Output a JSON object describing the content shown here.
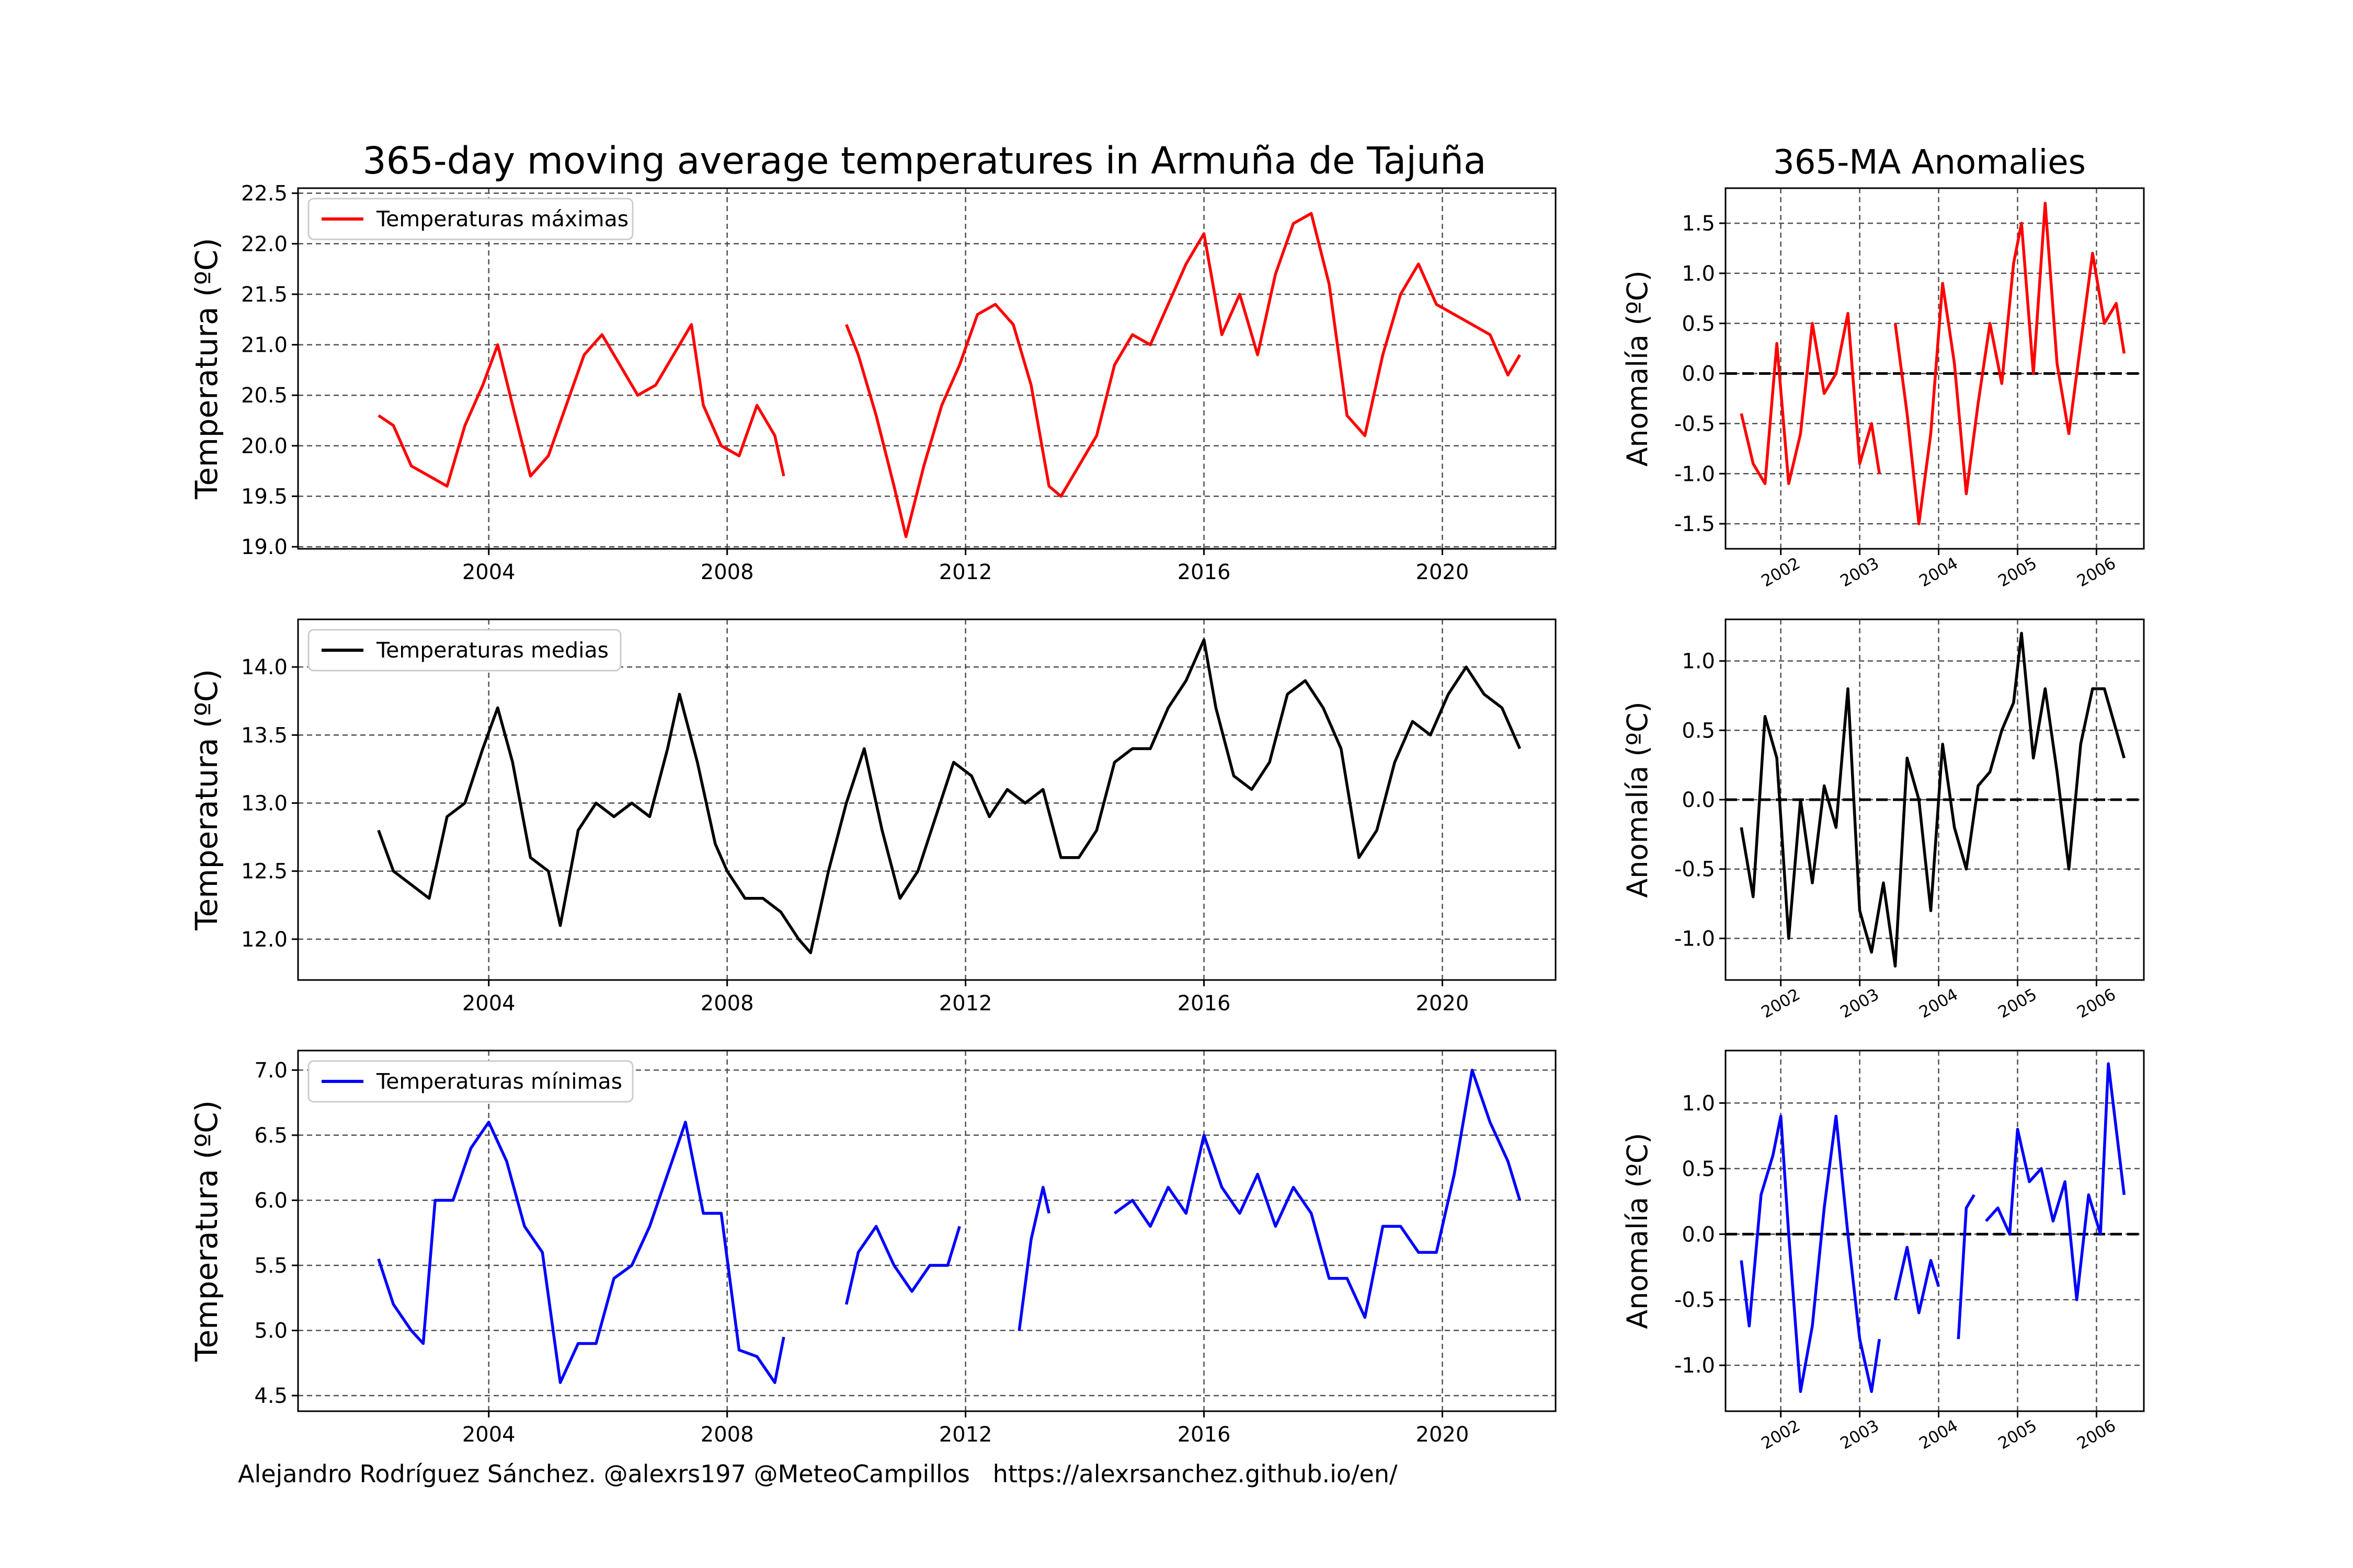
{
  "title": "365-day moving average temperatures in Armuña de Tajuña",
  "anomalies_title": "365-MA Anomalies",
  "footer": {
    "author": "Alejandro Rodríguez Sánchez. @alexrs197 @MeteoCampillos",
    "url": "https://alexrsanchez.github.io/en/"
  },
  "colors": {
    "max": "#ff0000",
    "mean": "#000000",
    "min": "#0000ff",
    "grid": "#505050"
  },
  "chart_data": [
    {
      "type": "line",
      "ylabel": "Temperatura (ºC)",
      "xlim": [
        2000.8,
        2021.9
      ],
      "ylim": [
        18.98,
        22.55
      ],
      "xticks": [
        2004,
        2008,
        2012,
        2016,
        2020
      ],
      "yticks": [
        19.0,
        19.5,
        20.0,
        20.5,
        21.0,
        21.5,
        22.0,
        22.5
      ],
      "legend": "top-left",
      "grid": true,
      "series": [
        {
          "name": "Temperaturas máximas",
          "color": "#ff0000",
          "x": [
            2002.15,
            2002.4,
            2002.7,
            2003.0,
            2003.3,
            2003.6,
            2003.9,
            2004.15,
            2004.4,
            2004.7,
            2005.0,
            2005.3,
            2005.6,
            2005.9,
            2006.2,
            2006.5,
            2006.8,
            2007.1,
            2007.4,
            2007.6,
            2007.9,
            2008.2,
            2008.5,
            2008.8,
            2008.95,
            null,
            2010.0,
            2010.2,
            2010.5,
            2010.8,
            2011.0,
            2011.3,
            2011.6,
            2011.9,
            2012.2,
            2012.5,
            2012.8,
            2013.1,
            2013.4,
            2013.6,
            2013.9,
            2014.2,
            2014.5,
            2014.8,
            2015.1,
            2015.4,
            2015.7,
            2016.0,
            2016.3,
            2016.6,
            2016.9,
            2017.2,
            2017.5,
            2017.8,
            2018.1,
            2018.4,
            2018.7,
            2019.0,
            2019.3,
            2019.6,
            2019.9,
            2020.2,
            2020.5,
            2020.8,
            2021.1,
            2021.3
          ],
          "y": [
            20.3,
            20.2,
            19.8,
            19.7,
            19.6,
            20.2,
            20.6,
            21.0,
            20.4,
            19.7,
            19.9,
            20.4,
            20.9,
            21.1,
            20.8,
            20.5,
            20.6,
            20.9,
            21.2,
            20.4,
            20.0,
            19.9,
            20.4,
            20.1,
            19.7,
            null,
            21.2,
            20.9,
            20.3,
            19.6,
            19.1,
            19.8,
            20.4,
            20.8,
            21.3,
            21.4,
            21.2,
            20.6,
            19.6,
            19.5,
            19.8,
            20.1,
            20.8,
            21.1,
            21.0,
            21.4,
            21.8,
            22.1,
            21.1,
            21.5,
            20.9,
            21.7,
            22.2,
            22.3,
            21.6,
            20.3,
            20.1,
            20.9,
            21.5,
            21.8,
            21.4,
            21.3,
            21.2,
            21.1,
            20.7,
            20.9
          ]
        }
      ]
    },
    {
      "type": "line",
      "ylabel": "Temperatura (ºC)",
      "xlim": [
        2000.8,
        2021.9
      ],
      "ylim": [
        11.7,
        14.35
      ],
      "xticks": [
        2004,
        2008,
        2012,
        2016,
        2020
      ],
      "yticks": [
        12.0,
        12.5,
        13.0,
        13.5,
        14.0
      ],
      "legend": "top-left",
      "grid": true,
      "series": [
        {
          "name": "Temperaturas medias",
          "color": "#000000",
          "x": [
            2002.15,
            2002.4,
            2002.7,
            2003.0,
            2003.3,
            2003.6,
            2003.9,
            2004.15,
            2004.4,
            2004.7,
            2005.0,
            2005.2,
            2005.5,
            2005.8,
            2006.1,
            2006.4,
            2006.7,
            2007.0,
            2007.2,
            2007.5,
            2007.8,
            2008.0,
            2008.3,
            2008.6,
            2008.9,
            2009.2,
            2009.4,
            2009.7,
            2010.0,
            2010.3,
            2010.6,
            2010.9,
            2011.2,
            2011.5,
            2011.8,
            2012.1,
            2012.4,
            2012.7,
            2013.0,
            2013.3,
            2013.6,
            2013.9,
            2014.2,
            2014.5,
            2014.8,
            2015.1,
            2015.4,
            2015.7,
            2016.0,
            2016.2,
            2016.5,
            2016.8,
            2017.1,
            2017.4,
            2017.7,
            2018.0,
            2018.3,
            2018.6,
            2018.9,
            2019.2,
            2019.5,
            2019.8,
            2020.1,
            2020.4,
            2020.7,
            2021.0,
            2021.3
          ],
          "y": [
            12.8,
            12.5,
            12.4,
            12.3,
            12.9,
            13.0,
            13.4,
            13.7,
            13.3,
            12.6,
            12.5,
            12.1,
            12.8,
            13.0,
            12.9,
            13.0,
            12.9,
            13.4,
            13.8,
            13.3,
            12.7,
            12.5,
            12.3,
            12.3,
            12.2,
            12.0,
            11.9,
            12.5,
            13.0,
            13.4,
            12.8,
            12.3,
            12.5,
            12.9,
            13.3,
            13.2,
            12.9,
            13.1,
            13.0,
            13.1,
            12.6,
            12.6,
            12.8,
            13.3,
            13.4,
            13.4,
            13.7,
            13.9,
            14.2,
            13.7,
            13.2,
            13.1,
            13.3,
            13.8,
            13.9,
            13.7,
            13.4,
            12.6,
            12.8,
            13.3,
            13.6,
            13.5,
            13.8,
            14.0,
            13.8,
            13.7,
            13.4
          ]
        }
      ]
    },
    {
      "type": "line",
      "ylabel": "Temperatura (ºC)",
      "xlim": [
        2000.8,
        2021.9
      ],
      "ylim": [
        4.38,
        7.15
      ],
      "xticks": [
        2004,
        2008,
        2012,
        2016,
        2020
      ],
      "yticks": [
        4.5,
        5.0,
        5.5,
        6.0,
        6.5,
        7.0
      ],
      "legend": "top-left",
      "grid": true,
      "series": [
        {
          "name": "Temperaturas mínimas",
          "color": "#0000ff",
          "x": [
            2002.15,
            2002.4,
            2002.7,
            2002.9,
            2003.1,
            2003.4,
            2003.7,
            2004.0,
            2004.3,
            2004.6,
            2004.9,
            2005.2,
            2005.5,
            2005.8,
            2006.1,
            2006.4,
            2006.7,
            2007.0,
            2007.3,
            2007.6,
            2007.9,
            2008.2,
            2008.5,
            2008.8,
            2008.95,
            null,
            2010.0,
            2010.2,
            2010.5,
            2010.8,
            2011.1,
            2011.4,
            2011.7,
            2011.9,
            null,
            2012.9,
            2013.1,
            2013.3,
            2013.4,
            null,
            2014.5,
            2014.8,
            2015.1,
            2015.4,
            2015.7,
            2016.0,
            2016.3,
            2016.6,
            2016.9,
            2017.2,
            2017.5,
            2017.8,
            2018.1,
            2018.4,
            2018.7,
            2019.0,
            2019.3,
            2019.6,
            2019.9,
            2020.2,
            2020.5,
            2020.8,
            2021.1,
            2021.3
          ],
          "y": [
            5.55,
            5.2,
            5.0,
            4.9,
            6.0,
            6.0,
            6.4,
            6.6,
            6.3,
            5.8,
            5.6,
            4.6,
            4.9,
            4.9,
            5.4,
            5.5,
            5.8,
            6.2,
            6.6,
            5.9,
            5.9,
            4.85,
            4.8,
            4.6,
            4.95,
            null,
            5.2,
            5.6,
            5.8,
            5.5,
            5.3,
            5.5,
            5.5,
            5.8,
            null,
            5.0,
            5.7,
            6.1,
            5.9,
            null,
            5.9,
            6.0,
            5.8,
            6.1,
            5.9,
            6.5,
            6.1,
            5.9,
            6.2,
            5.8,
            6.1,
            5.9,
            5.4,
            5.4,
            5.1,
            5.8,
            5.8,
            5.6,
            5.6,
            6.2,
            7.0,
            6.6,
            6.3,
            6.0
          ]
        }
      ]
    },
    {
      "type": "line",
      "title": "365-MA Anomalies",
      "ylabel": "Anomalía (ºC)",
      "xlim": [
        2001.3,
        2006.6
      ],
      "ylim": [
        -1.75,
        1.85
      ],
      "xticks": [
        2002,
        2003,
        2004,
        2005,
        2006
      ],
      "yticks": [
        -1.5,
        -1.0,
        -0.5,
        0.0,
        0.5,
        1.0,
        1.5
      ],
      "grid": true,
      "zero_line": true,
      "series": [
        {
          "color": "#ff0000",
          "x": [
            2001.5,
            2001.65,
            2001.8,
            2001.95,
            2002.1,
            2002.25,
            2002.4,
            2002.55,
            2002.7,
            2002.85,
            2003.0,
            2003.15,
            2003.25,
            null,
            2003.45,
            2003.6,
            2003.75,
            2003.9,
            2004.05,
            2004.2,
            2004.35,
            2004.5,
            2004.65,
            2004.8,
            2004.95,
            2005.05,
            2005.2,
            2005.35,
            2005.5,
            2005.65,
            2005.8,
            2005.95,
            2006.1,
            2006.25,
            2006.35
          ],
          "y": [
            -0.4,
            -0.9,
            -1.1,
            0.3,
            -1.1,
            -0.6,
            0.5,
            -0.2,
            0.0,
            0.6,
            -0.9,
            -0.5,
            -1.0,
            null,
            0.5,
            -0.4,
            -1.5,
            -0.6,
            0.9,
            0.1,
            -1.2,
            -0.3,
            0.5,
            -0.1,
            1.1,
            1.5,
            0.0,
            1.7,
            0.1,
            -0.6,
            0.3,
            1.2,
            0.5,
            0.7,
            0.2
          ]
        }
      ]
    },
    {
      "type": "line",
      "ylabel": "Anomalía (ºC)",
      "xlim": [
        2001.3,
        2006.6
      ],
      "ylim": [
        -1.3,
        1.3
      ],
      "xticks": [
        2002,
        2003,
        2004,
        2005,
        2006
      ],
      "yticks": [
        -1.0,
        -0.5,
        0.0,
        0.5,
        1.0
      ],
      "grid": true,
      "zero_line": true,
      "series": [
        {
          "color": "#000000",
          "x": [
            2001.5,
            2001.65,
            2001.8,
            2001.95,
            2002.1,
            2002.25,
            2002.4,
            2002.55,
            2002.7,
            2002.85,
            2003.0,
            2003.15,
            2003.3,
            2003.45,
            2003.6,
            2003.75,
            2003.9,
            2004.05,
            2004.2,
            2004.35,
            2004.5,
            2004.65,
            2004.8,
            2004.95,
            2005.05,
            2005.2,
            2005.35,
            2005.5,
            2005.65,
            2005.8,
            2005.95,
            2006.1,
            2006.25,
            2006.35
          ],
          "y": [
            -0.2,
            -0.7,
            0.6,
            0.3,
            -1.0,
            0.0,
            -0.6,
            0.1,
            -0.2,
            0.8,
            -0.8,
            -1.1,
            -0.6,
            -1.2,
            0.3,
            0.0,
            -0.8,
            0.4,
            -0.2,
            -0.5,
            0.1,
            0.2,
            0.5,
            0.7,
            1.2,
            0.3,
            0.8,
            0.2,
            -0.5,
            0.4,
            0.8,
            0.8,
            0.5,
            0.3
          ]
        }
      ]
    },
    {
      "type": "line",
      "ylabel": "Anomalía (ºC)",
      "xlim": [
        2001.3,
        2006.6
      ],
      "ylim": [
        -1.35,
        1.4
      ],
      "xticks": [
        2002,
        2003,
        2004,
        2005,
        2006
      ],
      "yticks": [
        -1.0,
        -0.5,
        0.0,
        0.5,
        1.0
      ],
      "grid": true,
      "zero_line": true,
      "series": [
        {
          "color": "#0000ff",
          "x": [
            2001.5,
            2001.6,
            2001.75,
            2001.9,
            2002.0,
            2002.1,
            2002.25,
            2002.4,
            2002.55,
            2002.7,
            2002.85,
            2003.0,
            2003.15,
            2003.25,
            null,
            2003.45,
            2003.6,
            2003.75,
            2003.9,
            2004.0,
            null,
            2004.25,
            2004.35,
            2004.45,
            null,
            2004.6,
            2004.75,
            2004.9,
            2005.0,
            2005.15,
            2005.3,
            2005.45,
            2005.6,
            2005.75,
            2005.9,
            2006.05,
            2006.15,
            2006.25,
            2006.35
          ],
          "y": [
            -0.2,
            -0.7,
            0.3,
            0.6,
            0.9,
            0.0,
            -1.2,
            -0.7,
            0.2,
            0.9,
            0.0,
            -0.8,
            -1.2,
            -0.8,
            null,
            -0.5,
            -0.1,
            -0.6,
            -0.2,
            -0.4,
            null,
            -0.8,
            0.2,
            0.3,
            null,
            0.1,
            0.2,
            0.0,
            0.8,
            0.4,
            0.5,
            0.1,
            0.4,
            -0.5,
            0.3,
            0.0,
            1.3,
            0.8,
            0.3
          ]
        }
      ]
    }
  ]
}
